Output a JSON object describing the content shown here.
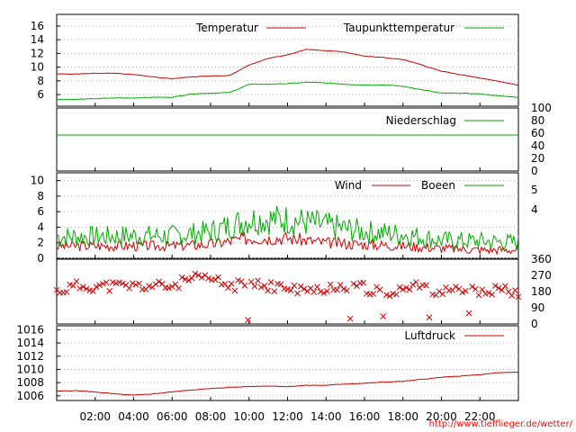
{
  "chart_data": [
    {
      "type": "line",
      "panel": "temperature",
      "series": [
        {
          "name": "Temperatur",
          "color": "#cc0000",
          "x": [
            0,
            1,
            2,
            3,
            4,
            5,
            6,
            7,
            8,
            9,
            10,
            11,
            12,
            13,
            14,
            15,
            16,
            17,
            18,
            19,
            20,
            21,
            22,
            23,
            24
          ],
          "values": [
            9.0,
            9.0,
            9.1,
            9.1,
            8.9,
            8.6,
            8.3,
            8.6,
            8.7,
            8.8,
            10.3,
            11.3,
            11.8,
            12.6,
            12.4,
            12.2,
            11.6,
            11.4,
            11.1,
            10.3,
            9.4,
            8.9,
            8.4,
            7.9,
            7.4
          ]
        },
        {
          "name": "Taupunkttemperatur",
          "color": "#00aa00",
          "x": [
            0,
            1,
            2,
            3,
            4,
            5,
            6,
            7,
            8,
            9,
            10,
            11,
            12,
            13,
            14,
            15,
            16,
            17,
            18,
            19,
            20,
            21,
            22,
            23,
            24
          ],
          "values": [
            5.3,
            5.3,
            5.4,
            5.5,
            5.5,
            5.6,
            5.6,
            6.1,
            6.2,
            6.3,
            7.5,
            7.5,
            7.6,
            7.8,
            7.7,
            7.5,
            7.4,
            7.4,
            7.2,
            6.7,
            6.2,
            6.2,
            6.1,
            5.8,
            5.6
          ]
        }
      ],
      "yticks": [
        6,
        8,
        10,
        12,
        14,
        16
      ],
      "ylim": [
        4.3,
        17.7
      ]
    },
    {
      "type": "line",
      "panel": "precipitation",
      "series": [
        {
          "name": "Niederschlag",
          "color": "#00aa00",
          "x": [
            0,
            24
          ],
          "values": [
            60,
            60
          ]
        }
      ],
      "yticks": [
        0,
        20,
        40,
        60,
        80,
        100
      ],
      "ylim": [
        0,
        100
      ]
    },
    {
      "type": "line",
      "panel": "wind",
      "series": [
        {
          "name": "Wind",
          "color": "#cc0000",
          "x": [
            0,
            2,
            4,
            6,
            8,
            10,
            12,
            14,
            16,
            18,
            20,
            22,
            24
          ],
          "values": [
            1.6,
            1.6,
            1.6,
            1.6,
            1.8,
            2.6,
            2.6,
            2.0,
            1.8,
            1.6,
            1.3,
            1.1,
            1.1
          ]
        },
        {
          "name": "Boeen",
          "color": "#00aa00",
          "x": [
            0,
            2,
            4,
            6,
            8,
            10,
            12,
            14,
            16,
            18,
            20,
            22,
            24
          ],
          "values": [
            2.8,
            2.8,
            2.9,
            2.9,
            3.4,
            5.0,
            5.0,
            4.2,
            3.4,
            3.1,
            2.3,
            2.2,
            2.0
          ]
        }
      ],
      "yticks_left": [
        0,
        2,
        4,
        6,
        8,
        10
      ],
      "yticks_right": [
        4,
        5
      ],
      "ylim": [
        0,
        11
      ]
    },
    {
      "type": "scatter",
      "panel": "wind-direction",
      "series": [
        {
          "name": "",
          "color": "#cc0000",
          "x": [
            0,
            1,
            2,
            3,
            4,
            5,
            6,
            7,
            8,
            9,
            10,
            11,
            12,
            13,
            14,
            15,
            16,
            17,
            18,
            19,
            20,
            21,
            22,
            23,
            24
          ],
          "values": [
            180,
            210,
            210,
            210,
            210,
            210,
            210,
            250,
            250,
            210,
            220,
            210,
            200,
            180,
            200,
            215,
            200,
            170,
            200,
            210,
            180,
            180,
            180,
            200,
            180
          ]
        }
      ],
      "yticks": [
        0,
        90,
        180,
        270,
        360
      ],
      "ylim": [
        0,
        360
      ]
    },
    {
      "type": "line",
      "panel": "pressure",
      "series": [
        {
          "name": "Luftdruck",
          "color": "#cc0000",
          "x": [
            0,
            1,
            2,
            3,
            4,
            5,
            6,
            7,
            8,
            9,
            10,
            11,
            12,
            13,
            14,
            15,
            16,
            17,
            18,
            19,
            20,
            21,
            22,
            23,
            24
          ],
          "values": [
            1006.7,
            1006.8,
            1006.6,
            1006.3,
            1006.1,
            1006.3,
            1006.6,
            1006.9,
            1007.1,
            1007.3,
            1007.4,
            1007.5,
            1007.4,
            1007.6,
            1007.6,
            1007.8,
            1007.9,
            1008.1,
            1008.2,
            1008.5,
            1008.8,
            1009.0,
            1009.2,
            1009.5,
            1009.6
          ]
        }
      ],
      "yticks": [
        1006,
        1008,
        1010,
        1012,
        1014,
        1016
      ],
      "ylim": [
        1005.3,
        1016.6
      ]
    }
  ],
  "xticks": [
    "02:00",
    "04:00",
    "06:00",
    "08:00",
    "10:00",
    "12:00",
    "14:00",
    "16:00",
    "18:00",
    "20:00",
    "22:00"
  ],
  "credit": "http://www.tiefflieger.de/wetter/"
}
